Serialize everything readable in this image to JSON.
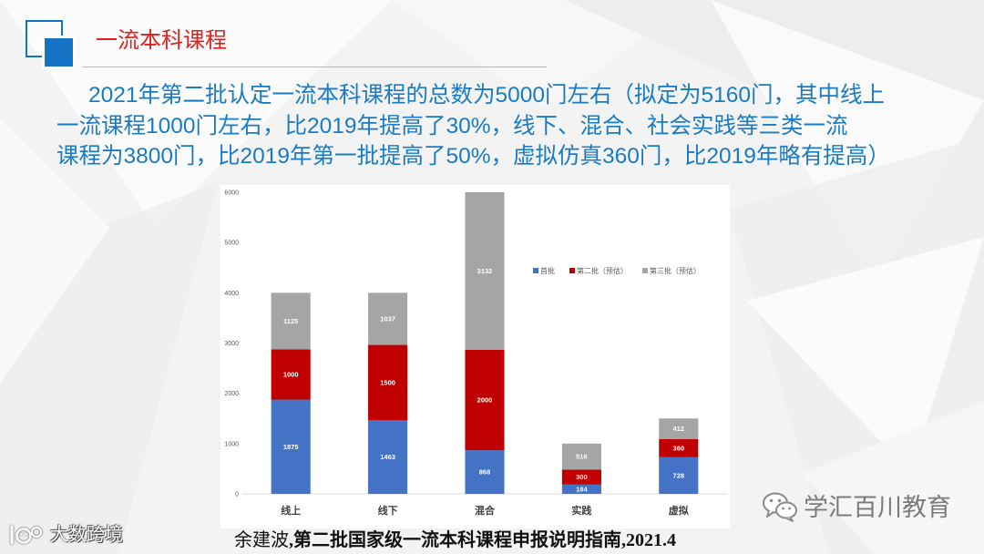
{
  "slide": {
    "title": "一流本科课程",
    "paragraph_lines": [
      "2021年第二批认定一流本科课程的总数为5000门左右（拟定为5160门，其中线上",
      "一流课程1000门左右，比2019年提高了30%，线下、混合、社会实践等三类一流",
      "课程为3800门，比2019年第一批提高了50%，虚拟仿真360门，比2019年略有提高）"
    ],
    "caption": {
      "author": "余建波",
      "rest": ",第二批国家级一流本科课程申报说明指南,2021.4"
    }
  },
  "watermarks": {
    "wechat_brand": "学汇百川教育",
    "corner_brand": "大数跨境"
  },
  "icons": {
    "slide_logo": "blue-squares-logo-icon",
    "wechat": "wechat-icon",
    "corner": "corner-brand-logo-icon"
  },
  "colors": {
    "title": "#E0201E",
    "body_text": "#1A7BC5",
    "logo_blue": "#1473C4"
  },
  "chart_data": {
    "type": "bar",
    "stacked": true,
    "categories": [
      "线上",
      "线下",
      "混合",
      "实践",
      "虚拟"
    ],
    "series": [
      {
        "name": "首批",
        "values": [
          1875,
          1463,
          868,
          184,
          728
        ],
        "color": "#4472C4"
      },
      {
        "name": "第二批（预估）",
        "values": [
          1000,
          1500,
          2000,
          300,
          360
        ],
        "color": "#C00000"
      },
      {
        "name": "第三批（预估）",
        "values": [
          1125,
          1037,
          3132,
          516,
          412
        ],
        "color": "#A5A5A5"
      }
    ],
    "yticks": [
      0,
      1000,
      2000,
      3000,
      4000,
      5000,
      6000
    ],
    "ylim": [
      0,
      6000
    ],
    "grid": false,
    "legend": "top-right",
    "data_labels": true
  }
}
